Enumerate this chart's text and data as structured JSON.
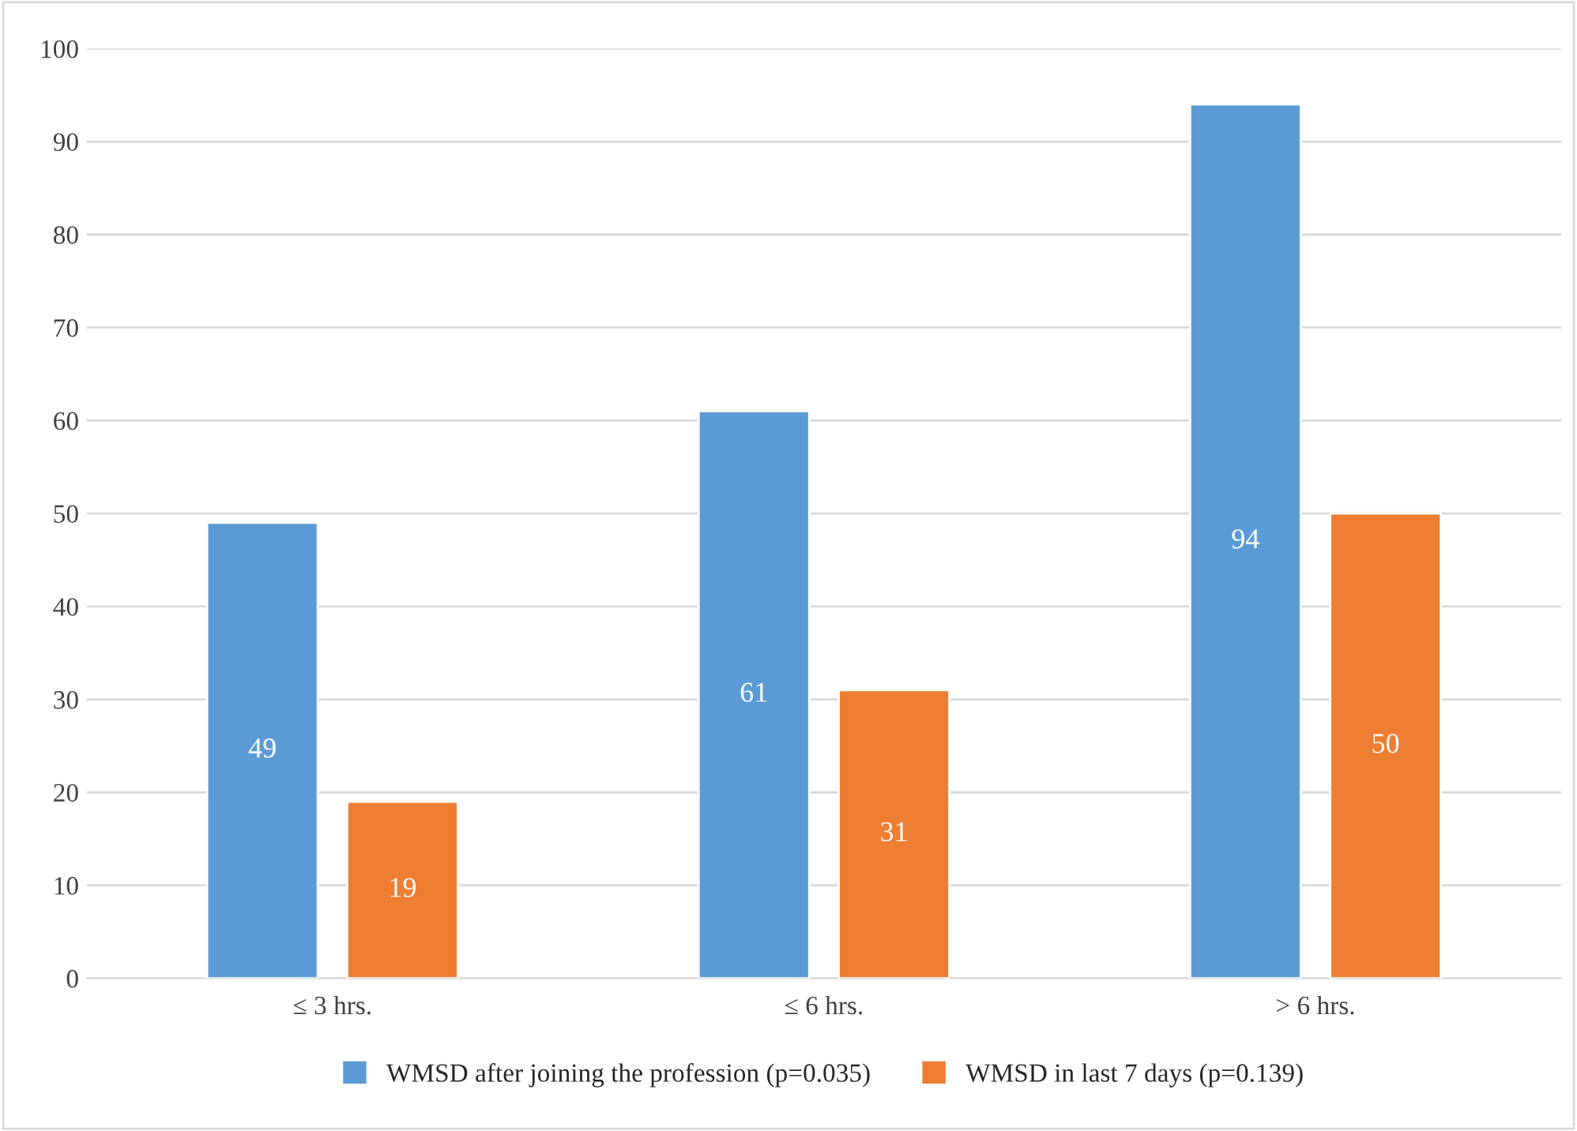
{
  "chart_data": {
    "type": "bar",
    "categories": [
      "≤ 3 hrs.",
      "≤ 6 hrs.",
      "> 6 hrs."
    ],
    "series": [
      {
        "name": "WMSD after joining the profession (p=0.035)",
        "color": "#5b9bd5",
        "values": [
          49,
          61,
          94
        ]
      },
      {
        "name": "WMSD in last 7 days (p=0.139)",
        "color": "#ed7d31",
        "values": [
          19,
          31,
          50
        ]
      }
    ],
    "ylim": [
      0,
      100
    ],
    "yticks": [
      0,
      10,
      20,
      30,
      40,
      50,
      60,
      70,
      80,
      90,
      100
    ],
    "grid": "y",
    "legend": "bottom",
    "data_labels": true
  }
}
